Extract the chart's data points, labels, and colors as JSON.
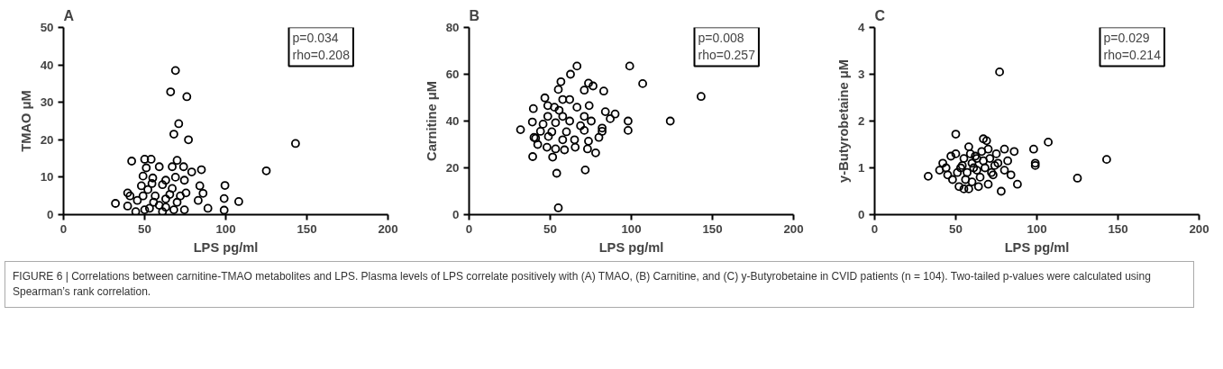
{
  "chart_data": [
    {
      "type": "scatter",
      "title": "A",
      "xlabel": "LPS pg/ml",
      "ylabel": "TMAO μM",
      "marker": "circle",
      "grid": false,
      "xlim": [
        0,
        200
      ],
      "ylim": [
        0,
        50
      ],
      "xticks": [
        0,
        50,
        100,
        150,
        200
      ],
      "yticks": [
        0,
        10,
        20,
        30,
        40,
        50
      ],
      "annotations": [
        "p=0.034\nrho=0.208"
      ],
      "series": [
        {
          "color": "#000000",
          "x": [
            69,
            66,
            76,
            71,
            68,
            77,
            42,
            50,
            54,
            70,
            51,
            59,
            67,
            74,
            85,
            79,
            49,
            55,
            63,
            69,
            74.5,
            125,
            143,
            99.5,
            99,
            108,
            99,
            89,
            32,
            39.5,
            39.5,
            48,
            52,
            61,
            67,
            84,
            86,
            83,
            75.5,
            70,
            74.5,
            44.5,
            50,
            55.5,
            59,
            63,
            45.5,
            56.5,
            65.5,
            72,
            49,
            53,
            61,
            68,
            41,
            54.5,
            63
          ],
          "values": [
            38.5,
            32.8,
            31.5,
            24.3,
            21.5,
            20,
            14.3,
            14.8,
            14.8,
            14.5,
            12.5,
            12.8,
            12.8,
            12.8,
            12,
            11.4,
            10.3,
            9.8,
            9.2,
            10,
            9.2,
            11.7,
            19,
            7.8,
            4.3,
            3.5,
            1.2,
            1.7,
            3,
            5.8,
            2.3,
            7.7,
            6.7,
            8,
            7,
            7.7,
            5.7,
            3.8,
            5.8,
            3.3,
            1.3,
            0.8,
            1.3,
            3.3,
            2.5,
            2,
            3.8,
            5,
            5.4,
            5,
            5,
            1.7,
            0.8,
            1.3,
            5,
            8.3,
            4.2
          ]
        }
      ]
    },
    {
      "type": "scatter",
      "title": "B",
      "xlabel": "LPS pg/ml",
      "ylabel": "Carnitine μM",
      "marker": "circle",
      "grid": false,
      "xlim": [
        0,
        200
      ],
      "ylim": [
        0,
        80
      ],
      "xticks": [
        0,
        50,
        100,
        150,
        200
      ],
      "yticks": [
        0,
        20,
        40,
        60,
        80
      ],
      "annotations": [
        "p=0.008\nrho=0.257"
      ],
      "series": [
        {
          "color": "#000000",
          "x": [
            66.5,
            62.5,
            56.6,
            73.6,
            76.4,
            55,
            71,
            46.7,
            57.7,
            62,
            48.5,
            52.6,
            39.6,
            55.5,
            66.5,
            74,
            83,
            48.5,
            57.7,
            71,
            39,
            45.6,
            53.3,
            62,
            68.7,
            75.3,
            31.7,
            44,
            51,
            60,
            71,
            82,
            41,
            40,
            48.9,
            57.7,
            65,
            73.6,
            48,
            53.3,
            58.8,
            73,
            78,
            39.2,
            51.5,
            71.6,
            54,
            55,
            42.3,
            65.4,
            99,
            107,
            143,
            124,
            98,
            98,
            84,
            87,
            82,
            90,
            80
          ],
          "values": [
            63.5,
            60,
            56.8,
            56.2,
            55,
            53.5,
            53.2,
            49.9,
            49.2,
            49.2,
            46.6,
            45.9,
            45.3,
            44.6,
            45.9,
            46.6,
            52.8,
            42,
            42,
            42,
            39.6,
            38.7,
            39.3,
            40,
            38,
            40,
            36.3,
            35.6,
            35.4,
            35.4,
            36,
            35.6,
            32.7,
            33,
            33.4,
            32,
            32,
            31.4,
            28.8,
            28.1,
            27.7,
            28.1,
            26.4,
            24.8,
            24.6,
            19.1,
            17.7,
            2.9,
            30,
            28.8,
            63.5,
            56,
            50.5,
            40,
            40,
            36,
            44,
            41,
            37,
            43,
            33
          ]
        }
      ]
    },
    {
      "type": "scatter",
      "title": "C",
      "xlabel": "LPS pg/ml",
      "ylabel": "y-Butyrobetaine μM",
      "marker": "circle",
      "grid": false,
      "xlim": [
        0,
        200
      ],
      "ylim": [
        0,
        4
      ],
      "xticks": [
        0,
        50,
        100,
        150,
        200
      ],
      "yticks": [
        0,
        1,
        2,
        3,
        4
      ],
      "annotations": [
        "p=0.029\nrho=0.214",
        "FIGURE 6 | Correlations between carnitine-TMAO metabolites and LPS. Plasma levels of LPS correlate positively with (A) TMAO, (B) Carnitine, and (C) y-Butyrobetaine in CVID patients (n = 104). Two-tailed p-values were calculated using Spearman’s rank correlation."
      ],
      "series": [
        {
          "color": "#000000",
          "x": [
            77,
            143,
            125,
            107,
            98,
            99,
            99,
            50,
            67,
            69,
            80,
            86,
            88,
            33,
            40,
            42,
            45,
            48,
            50,
            52,
            53,
            55,
            55,
            57,
            58,
            60,
            60,
            62,
            63,
            65,
            66,
            68,
            70,
            71,
            72,
            74,
            75,
            78,
            80,
            82,
            84,
            47,
            51,
            54,
            56,
            59,
            61,
            64,
            67,
            70,
            73,
            76,
            44,
            58,
            63
          ],
          "values": [
            3.05,
            1.18,
            0.78,
            1.55,
            1.4,
            1.1,
            1.05,
            1.72,
            1.62,
            1.58,
            1.4,
            1.35,
            0.65,
            0.82,
            0.95,
            1.1,
            0.85,
            0.75,
            1.3,
            0.6,
            1.0,
            0.55,
            1.2,
            0.9,
            1.45,
            0.7,
            1.1,
            1.25,
            0.95,
            0.8,
            1.35,
            1.0,
            0.65,
            1.2,
            0.9,
            1.05,
            1.3,
            0.5,
            0.95,
            1.15,
            0.85,
            1.25,
            0.9,
            1.05,
            0.75,
            1.3,
            1.0,
            0.6,
            1.15,
            1.4,
            0.85,
            1.1,
            1.0,
            0.55,
            1.2
          ]
        }
      ]
    }
  ]
}
